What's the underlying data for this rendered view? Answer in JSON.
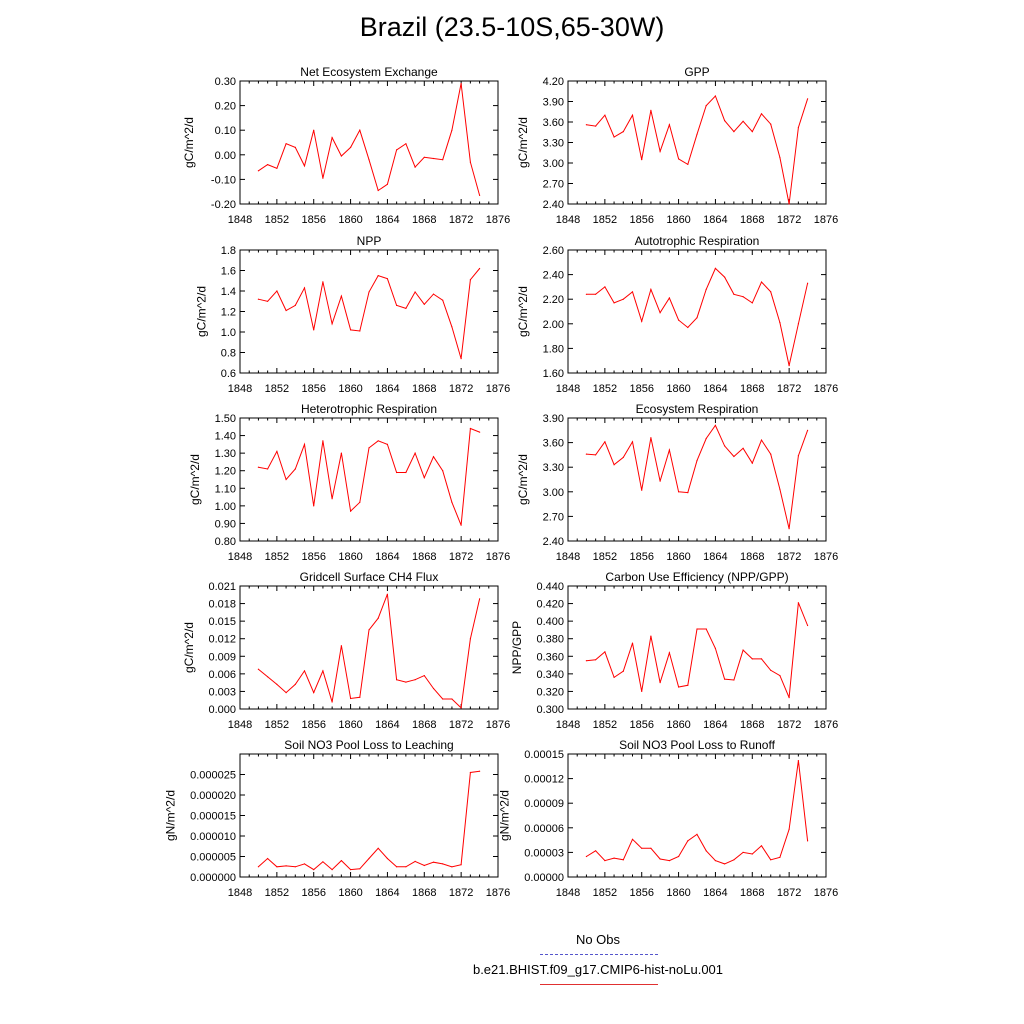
{
  "page_title": "Brazil (23.5-10S,65-30W)",
  "legend": {
    "items": [
      {
        "label": "No Obs",
        "color": "#5555cc",
        "style": "dashed"
      },
      {
        "label": "b.e21.BHIST.f09_g17.CMIP6-hist-noLu.001",
        "color": "#e03030",
        "style": "solid"
      }
    ]
  },
  "chart_data": [
    {
      "type": "line",
      "title": "Net Ecosystem Exchange",
      "ylabel": "gC/m^2/d",
      "xlim": [
        1848,
        1876
      ],
      "xticks": [
        1848,
        1852,
        1856,
        1860,
        1864,
        1868,
        1872,
        1876
      ],
      "ylim": [
        -0.2,
        0.3
      ],
      "yticks": [
        "-0.20",
        "-0.10",
        "0.00",
        "0.10",
        "0.20",
        "0.30"
      ],
      "color": "#ff0000",
      "x": [
        1850,
        1851,
        1852,
        1853,
        1854,
        1855,
        1856,
        1857,
        1858,
        1859,
        1860,
        1861,
        1862,
        1863,
        1864,
        1865,
        1866,
        1867,
        1868,
        1869,
        1870,
        1871,
        1872,
        1873,
        1874
      ],
      "y": [
        -0.065,
        -0.04,
        -0.055,
        0.045,
        0.03,
        -0.045,
        0.1,
        -0.095,
        0.07,
        -0.005,
        0.03,
        0.1,
        -0.02,
        -0.145,
        -0.12,
        0.02,
        0.045,
        -0.05,
        -0.01,
        -0.015,
        -0.02,
        0.1,
        0.29,
        -0.03,
        -0.165
      ]
    },
    {
      "type": "line",
      "title": "GPP",
      "ylabel": "gC/m^2/d",
      "xlim": [
        1848,
        1876
      ],
      "xticks": [
        1848,
        1852,
        1856,
        1860,
        1864,
        1868,
        1872,
        1876
      ],
      "ylim": [
        2.4,
        4.2
      ],
      "yticks": [
        "2.40",
        "2.70",
        "3.00",
        "3.30",
        "3.60",
        "3.90",
        "4.20"
      ],
      "color": "#ff0000",
      "x": [
        1850,
        1851,
        1852,
        1853,
        1854,
        1855,
        1856,
        1857,
        1858,
        1859,
        1860,
        1861,
        1862,
        1863,
        1864,
        1865,
        1866,
        1867,
        1868,
        1869,
        1870,
        1871,
        1872,
        1873,
        1874
      ],
      "y": [
        3.56,
        3.54,
        3.7,
        3.38,
        3.46,
        3.7,
        3.05,
        3.77,
        3.17,
        3.56,
        3.06,
        2.98,
        3.42,
        3.84,
        3.98,
        3.62,
        3.46,
        3.61,
        3.46,
        3.72,
        3.57,
        3.08,
        2.4,
        3.52,
        3.94
      ]
    },
    {
      "type": "line",
      "title": "NPP",
      "ylabel": "gC/m^2/d",
      "xlim": [
        1848,
        1876
      ],
      "xticks": [
        1848,
        1852,
        1856,
        1860,
        1864,
        1868,
        1872,
        1876
      ],
      "ylim": [
        0.6,
        1.8
      ],
      "yticks": [
        "0.6",
        "0.8",
        "1.0",
        "1.2",
        "1.4",
        "1.6",
        "1.8"
      ],
      "color": "#ff0000",
      "x": [
        1850,
        1851,
        1852,
        1853,
        1854,
        1855,
        1856,
        1857,
        1858,
        1859,
        1860,
        1861,
        1862,
        1863,
        1864,
        1865,
        1866,
        1867,
        1868,
        1869,
        1870,
        1871,
        1872,
        1873,
        1874
      ],
      "y": [
        1.32,
        1.3,
        1.4,
        1.21,
        1.26,
        1.43,
        1.02,
        1.49,
        1.08,
        1.35,
        1.02,
        1.01,
        1.39,
        1.55,
        1.52,
        1.26,
        1.23,
        1.39,
        1.27,
        1.37,
        1.31,
        1.05,
        0.74,
        1.51,
        1.62
      ]
    },
    {
      "type": "line",
      "title": "Autotrophic Respiration",
      "ylabel": "gC/m^2/d",
      "xlim": [
        1848,
        1876
      ],
      "xticks": [
        1848,
        1852,
        1856,
        1860,
        1864,
        1868,
        1872,
        1876
      ],
      "ylim": [
        1.6,
        2.6
      ],
      "yticks": [
        "1.60",
        "1.80",
        "2.00",
        "2.20",
        "2.40",
        "2.60"
      ],
      "color": "#ff0000",
      "x": [
        1850,
        1851,
        1852,
        1853,
        1854,
        1855,
        1856,
        1857,
        1858,
        1859,
        1860,
        1861,
        1862,
        1863,
        1864,
        1865,
        1866,
        1867,
        1868,
        1869,
        1870,
        1871,
        1872,
        1873,
        1874
      ],
      "y": [
        2.24,
        2.24,
        2.3,
        2.17,
        2.2,
        2.26,
        2.02,
        2.28,
        2.09,
        2.21,
        2.03,
        1.97,
        2.05,
        2.28,
        2.45,
        2.38,
        2.24,
        2.22,
        2.17,
        2.34,
        2.26,
        2.01,
        1.66,
        2.0,
        2.33
      ]
    },
    {
      "type": "line",
      "title": "Heterotrophic Respiration",
      "ylabel": "gC/m^2/d",
      "xlim": [
        1848,
        1876
      ],
      "xticks": [
        1848,
        1852,
        1856,
        1860,
        1864,
        1868,
        1872,
        1876
      ],
      "ylim": [
        0.8,
        1.5
      ],
      "yticks": [
        "0.80",
        "0.90",
        "1.00",
        "1.10",
        "1.20",
        "1.30",
        "1.40",
        "1.50"
      ],
      "color": "#ff0000",
      "x": [
        1850,
        1851,
        1852,
        1853,
        1854,
        1855,
        1856,
        1857,
        1858,
        1859,
        1860,
        1861,
        1862,
        1863,
        1864,
        1865,
        1866,
        1867,
        1868,
        1869,
        1870,
        1871,
        1872,
        1873,
        1874
      ],
      "y": [
        1.22,
        1.21,
        1.31,
        1.15,
        1.21,
        1.35,
        1.0,
        1.37,
        1.04,
        1.3,
        0.97,
        1.02,
        1.33,
        1.37,
        1.35,
        1.19,
        1.19,
        1.3,
        1.16,
        1.28,
        1.2,
        1.02,
        0.89,
        1.44,
        1.42
      ]
    },
    {
      "type": "line",
      "title": "Ecosystem Respiration",
      "ylabel": "gC/m^2/d",
      "xlim": [
        1848,
        1876
      ],
      "xticks": [
        1848,
        1852,
        1856,
        1860,
        1864,
        1868,
        1872,
        1876
      ],
      "ylim": [
        2.4,
        3.9
      ],
      "yticks": [
        "2.40",
        "2.70",
        "3.00",
        "3.30",
        "3.60",
        "3.90"
      ],
      "color": "#ff0000",
      "x": [
        1850,
        1851,
        1852,
        1853,
        1854,
        1855,
        1856,
        1857,
        1858,
        1859,
        1860,
        1861,
        1862,
        1863,
        1864,
        1865,
        1866,
        1867,
        1868,
        1869,
        1870,
        1871,
        1872,
        1873,
        1874
      ],
      "y": [
        3.46,
        3.45,
        3.61,
        3.33,
        3.42,
        3.61,
        3.02,
        3.66,
        3.13,
        3.51,
        3.0,
        2.99,
        3.38,
        3.65,
        3.81,
        3.56,
        3.43,
        3.53,
        3.35,
        3.63,
        3.46,
        3.03,
        2.55,
        3.44,
        3.75
      ]
    },
    {
      "type": "line",
      "title": "Gridcell Surface CH4 Flux",
      "ylabel": "gC/m^2/d",
      "xlim": [
        1848,
        1876
      ],
      "xticks": [
        1848,
        1852,
        1856,
        1860,
        1864,
        1868,
        1872,
        1876
      ],
      "ylim": [
        0,
        0.021
      ],
      "yticks": [
        "0.000",
        "0.003",
        "0.006",
        "0.009",
        "0.012",
        "0.015",
        "0.018",
        "0.021"
      ],
      "color": "#ff0000",
      "x": [
        1850,
        1851,
        1852,
        1853,
        1854,
        1855,
        1856,
        1857,
        1858,
        1859,
        1860,
        1861,
        1862,
        1863,
        1864,
        1865,
        1866,
        1867,
        1868,
        1869,
        1870,
        1871,
        1872,
        1873,
        1874
      ],
      "y": [
        0.0068,
        0.0055,
        0.0042,
        0.0028,
        0.0042,
        0.0065,
        0.0028,
        0.0065,
        0.0012,
        0.0108,
        0.0018,
        0.002,
        0.0135,
        0.0155,
        0.0196,
        0.005,
        0.0046,
        0.005,
        0.0057,
        0.0035,
        0.0017,
        0.0017,
        0.0002,
        0.012,
        0.0188
      ]
    },
    {
      "type": "line",
      "title": "Carbon Use Efficiency (NPP/GPP)",
      "ylabel": "NPP/GPP",
      "xlim": [
        1848,
        1876
      ],
      "xticks": [
        1848,
        1852,
        1856,
        1860,
        1864,
        1868,
        1872,
        1876
      ],
      "ylim": [
        0.3,
        0.44
      ],
      "yticks": [
        "0.300",
        "0.320",
        "0.340",
        "0.360",
        "0.380",
        "0.400",
        "0.420",
        "0.440"
      ],
      "color": "#ff0000",
      "x": [
        1850,
        1851,
        1852,
        1853,
        1854,
        1855,
        1856,
        1857,
        1858,
        1859,
        1860,
        1861,
        1862,
        1863,
        1864,
        1865,
        1866,
        1867,
        1868,
        1869,
        1870,
        1871,
        1872,
        1873,
        1874
      ],
      "y": [
        0.355,
        0.356,
        0.365,
        0.336,
        0.343,
        0.375,
        0.32,
        0.383,
        0.33,
        0.364,
        0.325,
        0.327,
        0.391,
        0.391,
        0.369,
        0.334,
        0.333,
        0.367,
        0.357,
        0.357,
        0.344,
        0.338,
        0.313,
        0.421,
        0.395
      ]
    },
    {
      "type": "line",
      "title": "Soil NO3 Pool Loss to Leaching",
      "ylabel": "gN/m^2/d",
      "xlim": [
        1848,
        1876
      ],
      "xticks": [
        1848,
        1852,
        1856,
        1860,
        1864,
        1868,
        1872,
        1876
      ],
      "ylim": [
        0,
        3e-05
      ],
      "yticks": [
        "0.000000",
        "0.000005",
        "0.000010",
        "0.000015",
        "0.000020",
        "0.000025"
      ],
      "color": "#ff0000",
      "x": [
        1850,
        1851,
        1852,
        1853,
        1854,
        1855,
        1856,
        1857,
        1858,
        1859,
        1860,
        1861,
        1862,
        1863,
        1864,
        1865,
        1866,
        1867,
        1868,
        1869,
        1870,
        1871,
        1872,
        1873,
        1874
      ],
      "y": [
        2.5e-06,
        4.5e-06,
        2.5e-06,
        2.7e-06,
        2.5e-06,
        3.2e-06,
        1.8e-06,
        3.7e-06,
        1.8e-06,
        4e-06,
        1.8e-06,
        2e-06,
        4.5e-06,
        7e-06,
        4.5e-06,
        2.5e-06,
        2.5e-06,
        3.8e-06,
        2.8e-06,
        3.6e-06,
        3.2e-06,
        2.5e-06,
        3e-06,
        2.55e-05,
        2.58e-05
      ]
    },
    {
      "type": "line",
      "title": "Soil NO3 Pool Loss to Runoff",
      "ylabel": "gN/m^2/d",
      "xlim": [
        1848,
        1876
      ],
      "xticks": [
        1848,
        1852,
        1856,
        1860,
        1864,
        1868,
        1872,
        1876
      ],
      "ylim": [
        0,
        0.00015
      ],
      "yticks": [
        "0.00000",
        "0.00003",
        "0.00006",
        "0.00009",
        "0.00012",
        "0.00015"
      ],
      "color": "#ff0000",
      "x": [
        1850,
        1851,
        1852,
        1853,
        1854,
        1855,
        1856,
        1857,
        1858,
        1859,
        1860,
        1861,
        1862,
        1863,
        1864,
        1865,
        1866,
        1867,
        1868,
        1869,
        1870,
        1871,
        1872,
        1873,
        1874
      ],
      "y": [
        2.5e-05,
        3.2e-05,
        2e-05,
        2.3e-05,
        2.1e-05,
        4.6e-05,
        3.5e-05,
        3.5e-05,
        2.2e-05,
        2e-05,
        2.5e-05,
        4.4e-05,
        5.2e-05,
        3.2e-05,
        2e-05,
        1.6e-05,
        2.1e-05,
        3e-05,
        2.8e-05,
        3.8e-05,
        2.1e-05,
        2.4e-05,
        5.8e-05,
        0.000142,
        4.4e-05
      ]
    }
  ]
}
